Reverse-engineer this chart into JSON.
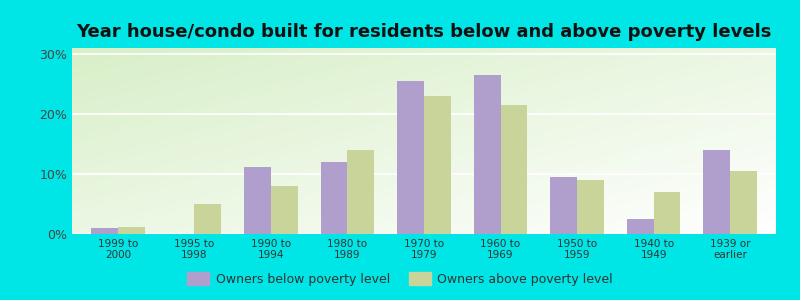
{
  "title": "Year house/condo built for residents below and above poverty levels",
  "categories": [
    "1999 to\n2000",
    "1995 to\n1998",
    "1990 to\n1994",
    "1980 to\n1989",
    "1970 to\n1979",
    "1960 to\n1969",
    "1950 to\n1959",
    "1940 to\n1949",
    "1939 or\nearlier"
  ],
  "below_poverty": [
    1.0,
    0.0,
    11.2,
    12.0,
    25.5,
    26.5,
    9.5,
    2.5,
    14.0
  ],
  "above_poverty": [
    1.2,
    5.0,
    8.0,
    14.0,
    23.0,
    21.5,
    9.0,
    7.0,
    10.5
  ],
  "below_color": "#b09fcc",
  "above_color": "#c8d49a",
  "yticks": [
    0,
    10,
    20,
    30
  ],
  "ylim": [
    0,
    31
  ],
  "outer_bg": "#00e5e5",
  "title_fontsize": 13,
  "legend_below_label": "Owners below poverty level",
  "legend_above_label": "Owners above poverty level",
  "bar_width": 0.35
}
